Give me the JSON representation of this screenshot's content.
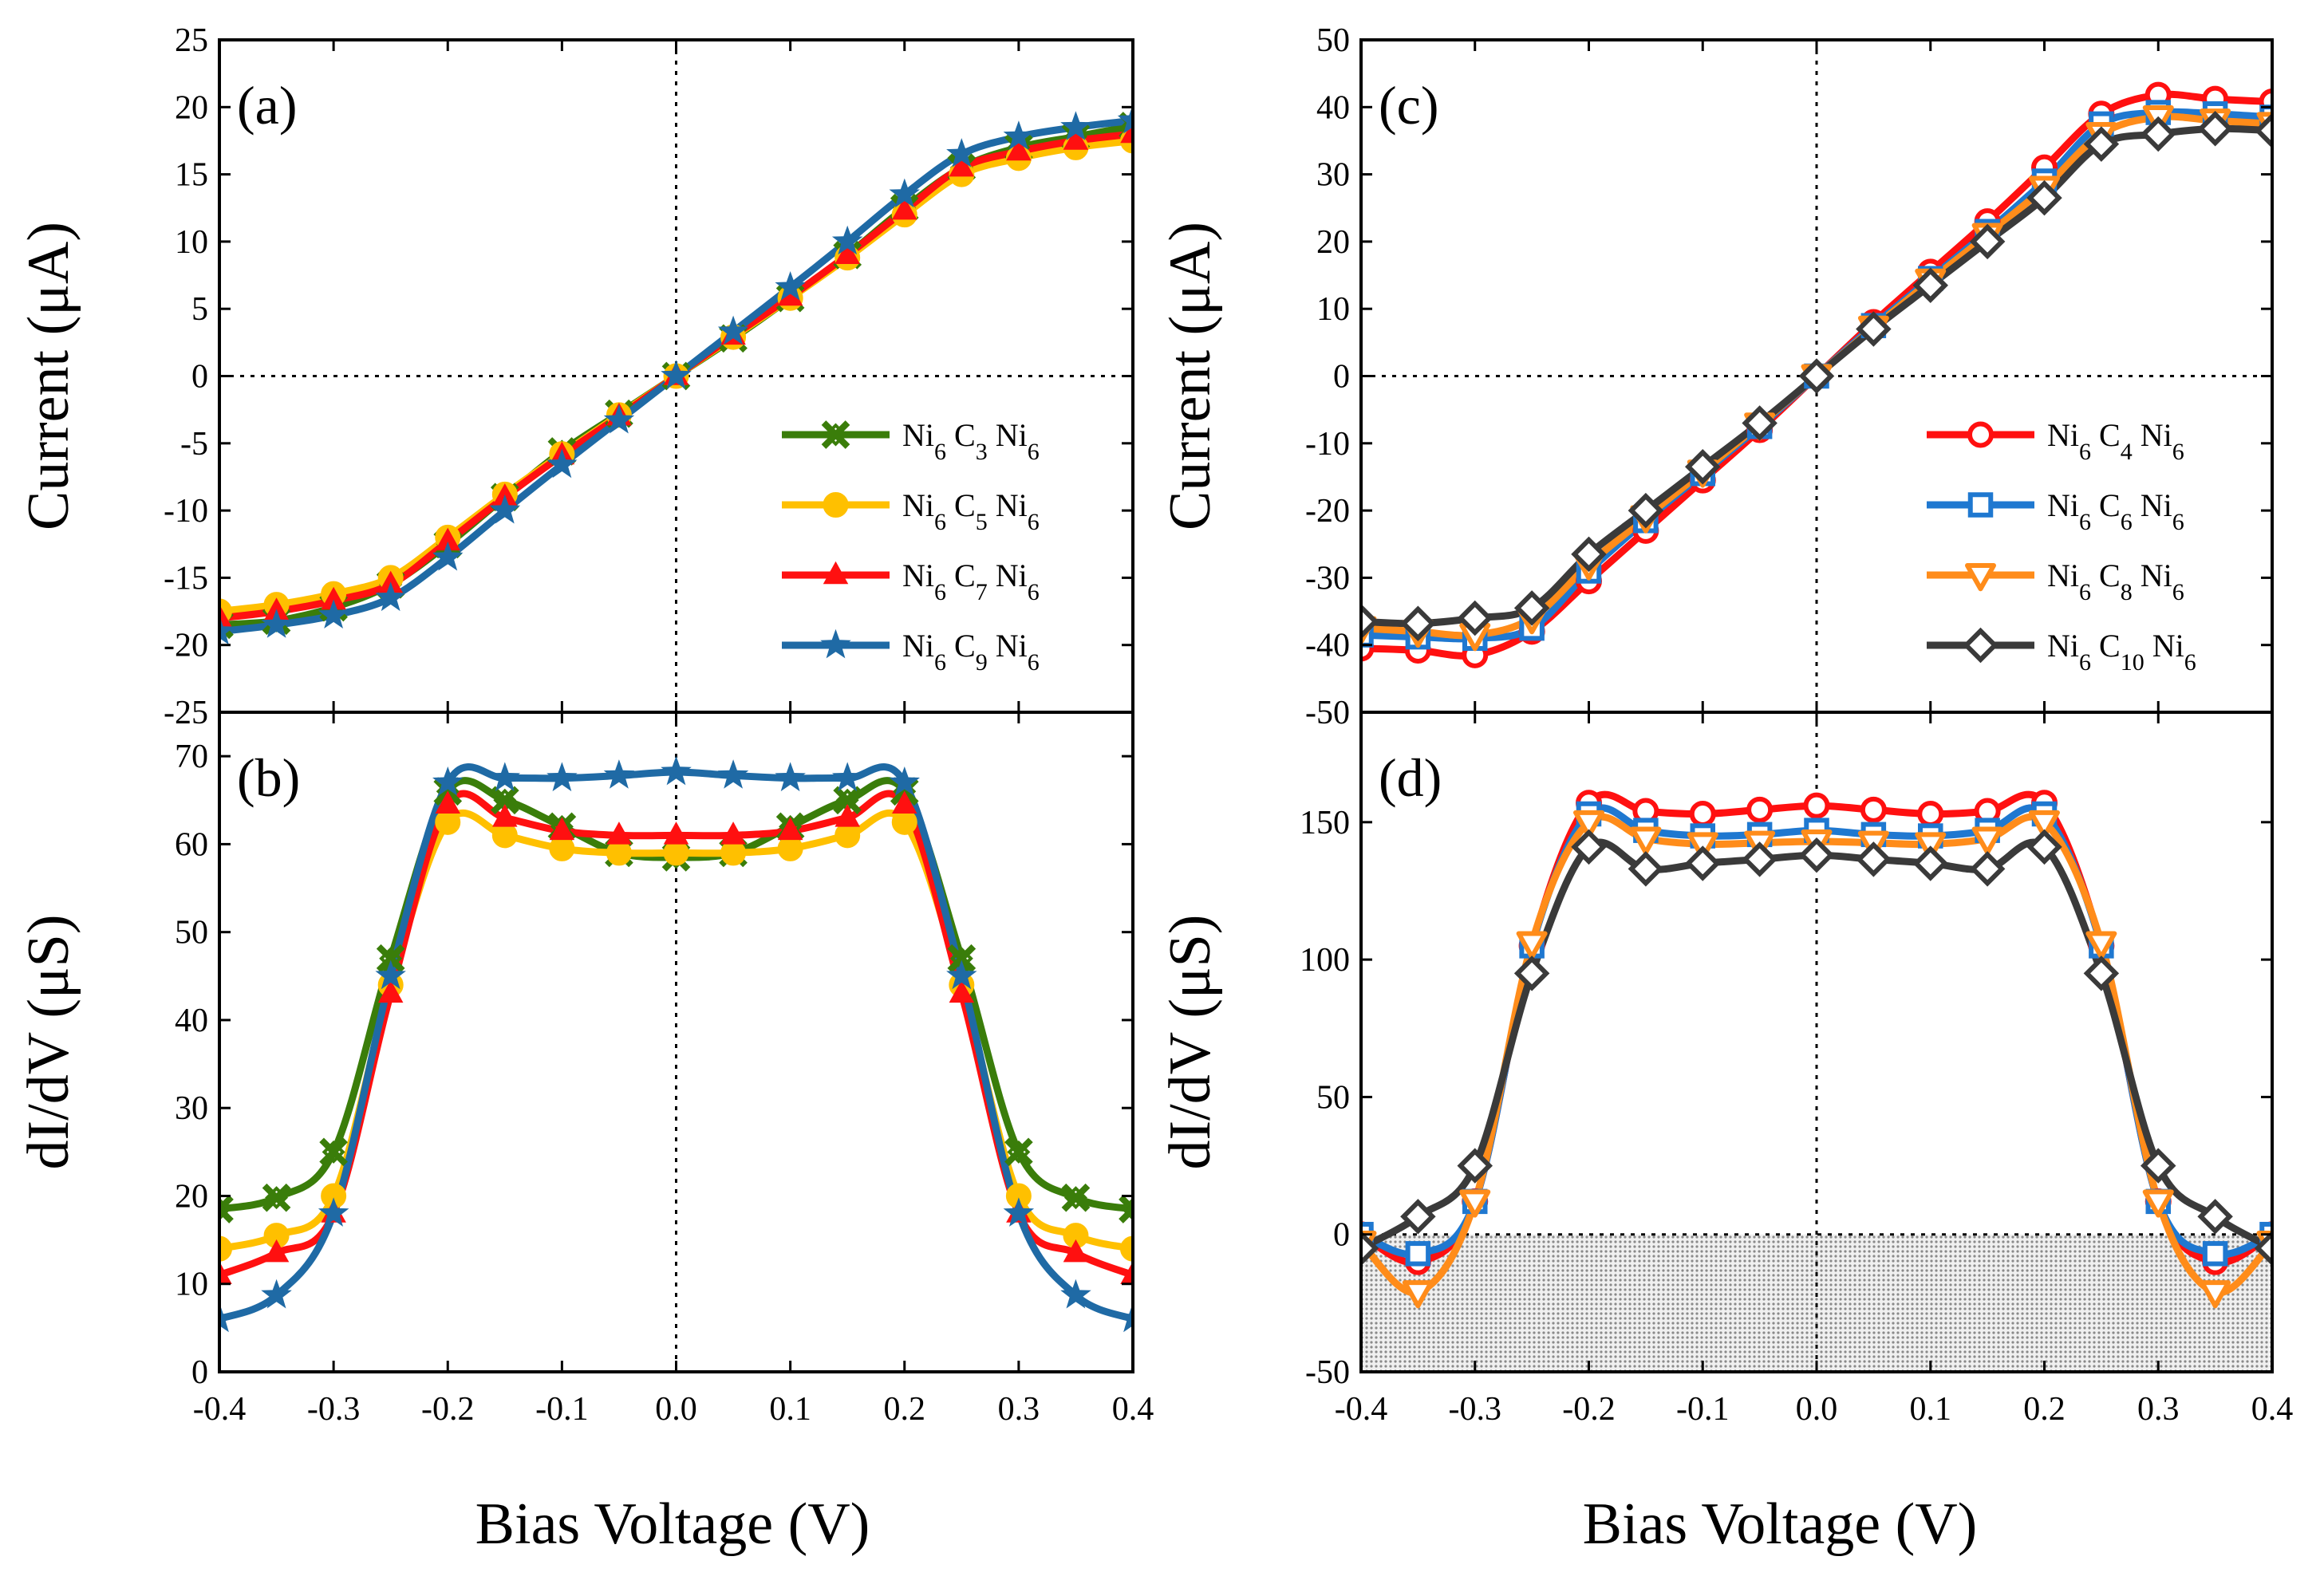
{
  "figure": {
    "xlabel": "Bias Voltage (V)"
  },
  "chart_data": [
    {
      "id": "a",
      "type": "line",
      "panel_label": "(a)",
      "ylabel": "Current (μA)",
      "xlabel": "Bias Voltage (V)",
      "xlim": [
        -0.4,
        0.4
      ],
      "ylim": [
        -25,
        25
      ],
      "xticks": [
        -0.4,
        -0.3,
        -0.2,
        -0.1,
        0.0,
        0.1,
        0.2,
        0.3,
        0.4
      ],
      "xtick_labels": [
        "-0.4",
        "-0.3",
        "-0.2",
        "-0.1",
        "0.0",
        "0.1",
        "0.2",
        "0.3",
        "0.4"
      ],
      "yticks": [
        -25,
        -20,
        -15,
        -10,
        -5,
        0,
        5,
        10,
        15,
        20,
        25
      ],
      "ytick_labels": [
        "-25",
        "-20",
        "-15",
        "-10",
        "-5",
        "0",
        "5",
        "10",
        "15",
        "20",
        "25"
      ],
      "show_xtick_labels": false,
      "legend_position": "lower-right",
      "x": [
        -0.4,
        -0.35,
        -0.3,
        -0.25,
        -0.2,
        -0.15,
        -0.1,
        -0.05,
        0.0,
        0.05,
        0.1,
        0.15,
        0.2,
        0.25,
        0.3,
        0.35,
        0.4
      ],
      "series": [
        {
          "name": "Ni6C3Ni6",
          "sub": [
            "6",
            "3",
            "6"
          ],
          "color": "#3a7d0a",
          "marker": "x-cross",
          "values": [
            -18.5,
            -18.2,
            -17.2,
            -15.5,
            -12.5,
            -9.0,
            -5.6,
            -2.8,
            0.0,
            2.8,
            5.8,
            9.0,
            12.5,
            15.5,
            17.0,
            17.8,
            18.6
          ]
        },
        {
          "name": "Ni6C5Ni6",
          "sub": [
            "6",
            "5",
            "6"
          ],
          "color": "#ffc000",
          "marker": "circle",
          "values": [
            -17.5,
            -17.0,
            -16.2,
            -15.0,
            -12.0,
            -8.8,
            -5.8,
            -2.9,
            0.0,
            2.9,
            5.8,
            8.8,
            12.0,
            15.0,
            16.2,
            17.0,
            17.5
          ]
        },
        {
          "name": "Ni6C7Ni6",
          "sub": [
            "6",
            "7",
            "6"
          ],
          "color": "#ff1010",
          "marker": "triangle",
          "values": [
            -18.0,
            -17.5,
            -16.7,
            -15.5,
            -12.3,
            -9.0,
            -5.9,
            -3.0,
            0.0,
            3.0,
            5.9,
            9.0,
            12.3,
            15.5,
            16.7,
            17.5,
            18.0
          ]
        },
        {
          "name": "Ni6C9Ni6",
          "sub": [
            "6",
            "9",
            "6"
          ],
          "color": "#1f6aa5",
          "marker": "star",
          "values": [
            -19.0,
            -18.5,
            -17.8,
            -16.5,
            -13.5,
            -10.0,
            -6.6,
            -3.3,
            0.0,
            3.3,
            6.6,
            10.0,
            13.5,
            16.5,
            17.8,
            18.5,
            19.0
          ]
        }
      ]
    },
    {
      "id": "b",
      "type": "line",
      "panel_label": "(b)",
      "ylabel": "dI/dV (μS)",
      "xlabel": "Bias Voltage (V)",
      "xlim": [
        -0.4,
        0.4
      ],
      "ylim": [
        0,
        75
      ],
      "xticks": [
        -0.4,
        -0.3,
        -0.2,
        -0.1,
        0.0,
        0.1,
        0.2,
        0.3,
        0.4
      ],
      "xtick_labels": [
        "-0.4",
        "-0.3",
        "-0.2",
        "-0.1",
        "0.0",
        "0.1",
        "0.2",
        "0.3",
        "0.4"
      ],
      "yticks": [
        0,
        10,
        20,
        30,
        40,
        50,
        60,
        70
      ],
      "ytick_labels": [
        "0",
        "10",
        "20",
        "30",
        "40",
        "50",
        "60",
        "70"
      ],
      "show_xtick_labels": true,
      "x": [
        -0.4,
        -0.35,
        -0.3,
        -0.25,
        -0.2,
        -0.15,
        -0.1,
        -0.05,
        0.0,
        0.05,
        0.1,
        0.15,
        0.2,
        0.25,
        0.3,
        0.35,
        0.4
      ],
      "series": [
        {
          "name": "Ni6C3Ni6",
          "color": "#3a7d0a",
          "marker": "x-cross",
          "values": [
            18.5,
            19.8,
            25.0,
            47.0,
            66.0,
            65.0,
            62.0,
            59.0,
            58.5,
            59.0,
            62.0,
            65.0,
            66.0,
            47.0,
            25.0,
            19.8,
            18.5
          ]
        },
        {
          "name": "Ni6C5Ni6",
          "color": "#ffc000",
          "marker": "circle",
          "values": [
            14.0,
            15.5,
            20.0,
            44.0,
            62.5,
            61.0,
            59.5,
            59.0,
            59.0,
            59.0,
            59.5,
            61.0,
            62.5,
            44.0,
            20.0,
            15.5,
            14.0
          ]
        },
        {
          "name": "Ni6C7Ni6",
          "color": "#ff1010",
          "marker": "triangle",
          "values": [
            11.0,
            13.5,
            18.0,
            43.0,
            64.5,
            63.0,
            61.5,
            61.0,
            61.0,
            61.0,
            61.5,
            63.0,
            64.5,
            43.0,
            18.0,
            13.5,
            11.0
          ]
        },
        {
          "name": "Ni6C9Ni6",
          "color": "#1f6aa5",
          "marker": "star",
          "values": [
            6.0,
            8.7,
            18.0,
            45.0,
            67.0,
            67.5,
            67.5,
            67.8,
            68.2,
            67.8,
            67.5,
            67.5,
            67.0,
            45.0,
            18.0,
            8.7,
            6.0
          ]
        }
      ]
    },
    {
      "id": "c",
      "type": "line",
      "panel_label": "(c)",
      "ylabel": "Current (μA)",
      "xlabel": "Bias Voltage (V)",
      "xlim": [
        -0.4,
        0.4
      ],
      "ylim": [
        -50,
        50
      ],
      "xticks": [
        -0.4,
        -0.3,
        -0.2,
        -0.1,
        0.0,
        0.1,
        0.2,
        0.3,
        0.4
      ],
      "xtick_labels": [
        "-0.4",
        "-0.3",
        "-0.2",
        "-0.1",
        "0.0",
        "0.1",
        "0.2",
        "0.3",
        "0.4"
      ],
      "yticks": [
        -50,
        -40,
        -30,
        -20,
        -10,
        0,
        10,
        20,
        30,
        40,
        50
      ],
      "ytick_labels": [
        "-50",
        "-40",
        "-30",
        "-20",
        "-10",
        "0",
        "10",
        "20",
        "30",
        "40",
        "50"
      ],
      "show_xtick_labels": false,
      "legend_position": "lower-right",
      "x": [
        -0.4,
        -0.35,
        -0.3,
        -0.25,
        -0.2,
        -0.15,
        -0.1,
        -0.05,
        0.0,
        0.05,
        0.1,
        0.15,
        0.2,
        0.25,
        0.3,
        0.35,
        0.4
      ],
      "series": [
        {
          "name": "Ni6C4Ni6",
          "sub": [
            "6",
            "4",
            "6"
          ],
          "color": "#ff1010",
          "marker": "circle-open",
          "values": [
            -40.5,
            -40.8,
            -41.5,
            -38.0,
            -30.5,
            -23.0,
            -15.5,
            -8.0,
            0.0,
            8.0,
            15.5,
            23.0,
            31.0,
            39.0,
            41.8,
            41.2,
            40.8
          ]
        },
        {
          "name": "Ni6C6Ni6",
          "sub": [
            "6",
            "6",
            "6"
          ],
          "color": "#1f78d0",
          "marker": "square-open",
          "values": [
            -38.5,
            -38.8,
            -39.0,
            -37.5,
            -29.0,
            -21.5,
            -14.5,
            -7.5,
            0.0,
            7.5,
            14.5,
            21.5,
            29.0,
            37.5,
            39.2,
            39.0,
            38.5
          ]
        },
        {
          "name": "Ni6C8Ni6",
          "sub": [
            "6",
            "8",
            "6"
          ],
          "color": "#ff8c1a",
          "marker": "triangle-down-open",
          "values": [
            -37.5,
            -38.0,
            -38.5,
            -36.0,
            -28.0,
            -21.0,
            -14.2,
            -7.2,
            0.0,
            7.2,
            14.2,
            21.0,
            28.0,
            36.0,
            38.5,
            38.0,
            37.5
          ]
        },
        {
          "name": "Ni6C10Ni6",
          "sub": [
            "6",
            "10",
            "6"
          ],
          "color": "#3a3a3a",
          "marker": "diamond-open",
          "values": [
            -36.5,
            -36.8,
            -36.0,
            -34.5,
            -26.5,
            -20.0,
            -13.5,
            -7.0,
            0.0,
            7.0,
            13.5,
            20.0,
            26.5,
            34.5,
            36.0,
            36.8,
            36.5
          ]
        }
      ]
    },
    {
      "id": "d",
      "type": "line",
      "panel_label": "(d)",
      "ylabel": "dI/dV (μS)",
      "xlabel": "Bias Voltage (V)",
      "xlim": [
        -0.4,
        0.4
      ],
      "ylim": [
        -50,
        190
      ],
      "xticks": [
        -0.4,
        -0.3,
        -0.2,
        -0.1,
        0.0,
        0.1,
        0.2,
        0.3,
        0.4
      ],
      "xtick_labels": [
        "-0.4",
        "-0.3",
        "-0.2",
        "-0.1",
        "0.0",
        "0.1",
        "0.2",
        "0.3",
        "0.4"
      ],
      "yticks": [
        -50,
        0,
        50,
        100,
        150
      ],
      "ytick_labels": [
        "-50",
        "0",
        "50",
        "100",
        "150"
      ],
      "show_xtick_labels": true,
      "shaded_region": [
        -50,
        0
      ],
      "x": [
        -0.4,
        -0.35,
        -0.3,
        -0.25,
        -0.2,
        -0.15,
        -0.1,
        -0.05,
        0.0,
        0.05,
        0.1,
        0.15,
        0.2,
        0.25,
        0.3,
        0.35,
        0.4
      ],
      "series": [
        {
          "name": "Ni6C4Ni6",
          "color": "#ff1010",
          "marker": "circle-open",
          "values": [
            0.0,
            -10.0,
            12.0,
            105.0,
            157.0,
            154.0,
            153.0,
            154.5,
            156.0,
            154.5,
            153.0,
            154.0,
            157.0,
            105.0,
            12.0,
            -10.0,
            0.0
          ]
        },
        {
          "name": "Ni6C6Ni6",
          "color": "#1f78d0",
          "marker": "square-open",
          "values": [
            0.0,
            -7.0,
            12.0,
            105.0,
            153.0,
            147.0,
            145.0,
            145.5,
            147.0,
            145.5,
            145.0,
            147.0,
            153.0,
            105.0,
            12.0,
            -7.0,
            0.0
          ]
        },
        {
          "name": "Ni6C8Ni6",
          "color": "#ff8c1a",
          "marker": "triangle-down-open",
          "values": [
            -3.0,
            -21.0,
            12.0,
            106.0,
            150.0,
            144.0,
            142.0,
            142.5,
            143.0,
            142.5,
            142.0,
            144.0,
            150.0,
            106.0,
            12.0,
            -21.0,
            -3.0
          ]
        },
        {
          "name": "Ni6C10Ni6",
          "color": "#3a3a3a",
          "marker": "diamond-open",
          "values": [
            -5.0,
            6.5,
            25.0,
            95.0,
            141.0,
            133.0,
            135.0,
            136.5,
            138.0,
            136.5,
            135.0,
            133.0,
            141.0,
            95.0,
            25.0,
            6.5,
            -5.0
          ]
        }
      ]
    }
  ]
}
